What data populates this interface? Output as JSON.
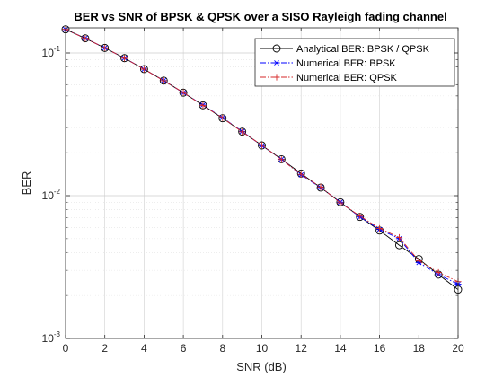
{
  "chart_data": {
    "type": "line",
    "title": "BER vs SNR of BPSK & QPSK over a SISO Rayleigh fading channel",
    "xlabel": "SNR (dB)",
    "ylabel": "BER",
    "xlim": [
      0,
      20
    ],
    "ylim": [
      0.001,
      0.15
    ],
    "yscale": "log",
    "grid": true,
    "legend": "top-right",
    "x_ticks": [
      "0",
      "2",
      "4",
      "6",
      "8",
      "10",
      "12",
      "14",
      "16",
      "18",
      "20"
    ],
    "y_ticks": [
      {
        "base": "10",
        "exp": "-1",
        "value": 0.1
      },
      {
        "base": "10",
        "exp": "-2",
        "value": 0.01
      },
      {
        "base": "10",
        "exp": "-3",
        "value": 0.001
      }
    ],
    "x": [
      0,
      1,
      2,
      3,
      4,
      5,
      6,
      7,
      8,
      9,
      10,
      11,
      12,
      13,
      14,
      15,
      16,
      17,
      18,
      19,
      20
    ],
    "series": [
      {
        "name": "Analytical BER: BPSK / QPSK",
        "color": "#000000",
        "line": "solid",
        "marker": "circle",
        "values": [
          0.1464,
          0.1267,
          0.1085,
          0.092,
          0.0771,
          0.064,
          0.0527,
          0.043,
          0.0349,
          0.0281,
          0.0225,
          0.018,
          0.0143,
          0.0114,
          0.009,
          0.0071,
          0.0057,
          0.0045,
          0.0036,
          0.0028,
          0.0022
        ]
      },
      {
        "name": "Numerical BER: BPSK",
        "color": "#0000ff",
        "line": "dash-dot",
        "marker": "asterisk",
        "values": [
          0.1462,
          0.1268,
          0.1085,
          0.0921,
          0.0769,
          0.0641,
          0.0526,
          0.0432,
          0.0352,
          0.0282,
          0.0224,
          0.018,
          0.014,
          0.0114,
          0.009,
          0.0071,
          0.0058,
          0.005,
          0.0034,
          0.0028,
          0.0024
        ]
      },
      {
        "name": "Numerical BER: QPSK",
        "color": "#d62728",
        "line": "dash-dot",
        "marker": "plus",
        "values": [
          0.1463,
          0.1265,
          0.1087,
          0.0919,
          0.077,
          0.0639,
          0.0528,
          0.0429,
          0.0351,
          0.028,
          0.0226,
          0.0179,
          0.0141,
          0.0115,
          0.0089,
          0.0072,
          0.0059,
          0.0051,
          0.0035,
          0.0029,
          0.0025
        ]
      }
    ]
  }
}
